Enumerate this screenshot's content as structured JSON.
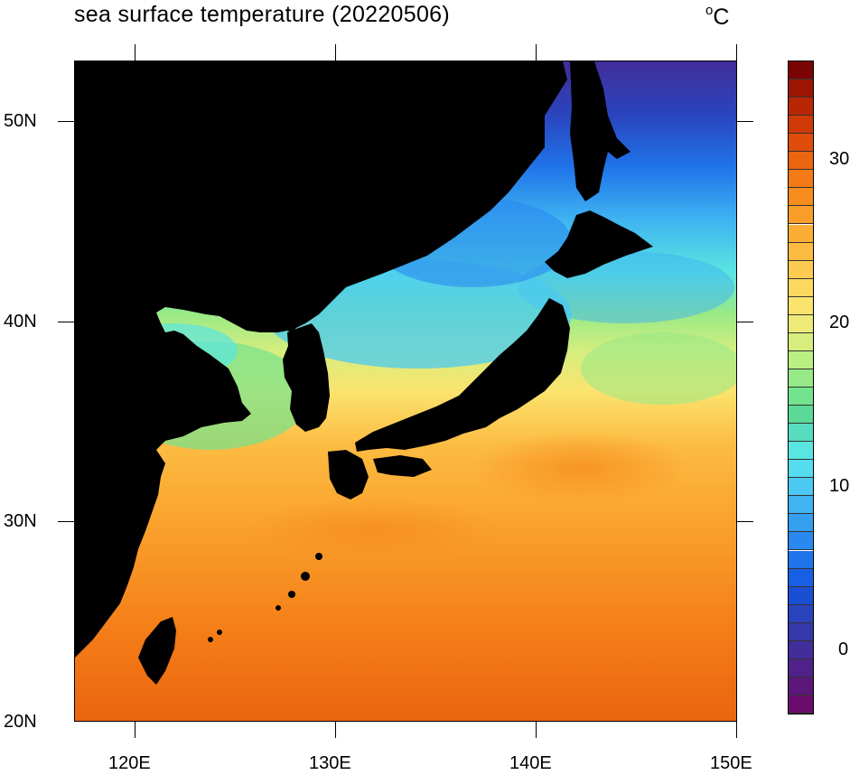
{
  "title": "sea surface temperature (20220506)",
  "units": "C",
  "units_degree_symbol": "o",
  "lat_labels": [
    "50N",
    "40N",
    "30N",
    "20N"
  ],
  "lon_labels": [
    "120E",
    "130E",
    "140E",
    "150E"
  ],
  "colorbar_labels": [
    "30",
    "20",
    "10",
    "0"
  ],
  "colorbar_colors": [
    "#7a0403",
    "#9b1502",
    "#b82604",
    "#cf3a06",
    "#e04d0a",
    "#eb6410",
    "#f37a16",
    "#f78c1f",
    "#f99d29",
    "#fbad35",
    "#fcbc42",
    "#fdcb51",
    "#fdd860",
    "#fbe36e",
    "#eeea79",
    "#d7ee7e",
    "#b9ef83",
    "#97ea87",
    "#74e38d",
    "#5bd996",
    "#58dcc0",
    "#5ae6e0",
    "#55dcee",
    "#4bc9f2",
    "#3fb4f1",
    "#349ff0",
    "#2a89ee",
    "#2074ea",
    "#1860e3",
    "#1b4fd3",
    "#2a44bd",
    "#3539a9",
    "#422d99",
    "#502289",
    "#5d177b",
    "#6a0c6e"
  ],
  "colorbar_range": [
    -4,
    36
  ],
  "map_extent": {
    "lon": [
      117,
      150
    ],
    "lat": [
      20,
      53
    ]
  },
  "land_color": "#000000"
}
